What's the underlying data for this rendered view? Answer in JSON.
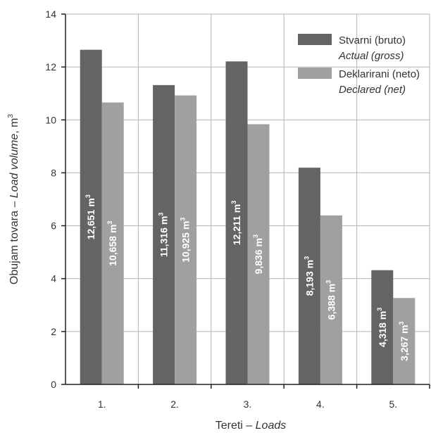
{
  "chart_data": {
    "type": "bar",
    "categories": [
      "1.",
      "2.",
      "3.",
      "4.",
      "5."
    ],
    "series": [
      {
        "name": "Stvarni (bruto)",
        "name_en": "Actual (gross)",
        "color": "#646464",
        "values": [
          12.651,
          11.316,
          12.211,
          8.193,
          4.318
        ],
        "labels": [
          "12,651",
          "11,316",
          "12,211",
          "8,193",
          "4,318"
        ]
      },
      {
        "name": "Deklarirani (neto)",
        "name_en": "Declared (net)",
        "color": "#a0a0a0",
        "values": [
          10.658,
          10.925,
          9.836,
          6.388,
          3.267
        ],
        "labels": [
          "10,658",
          "10,925",
          "9,836",
          "6,388",
          "3,267"
        ]
      }
    ],
    "label_unit": "m",
    "label_unit_sup": "3",
    "ylim": [
      0,
      14
    ],
    "yticks": [
      0,
      2,
      4,
      6,
      8,
      10,
      12,
      14
    ],
    "xlabel": {
      "text": "Tereti",
      "sep": " – ",
      "italic": "Loads"
    },
    "ylabel": {
      "text": "Obujam tovara",
      "sep": " – ",
      "italic": "Load volume",
      "unit": ", m",
      "unit_sup": "3"
    },
    "grid": true,
    "legend_position": "top-right"
  }
}
